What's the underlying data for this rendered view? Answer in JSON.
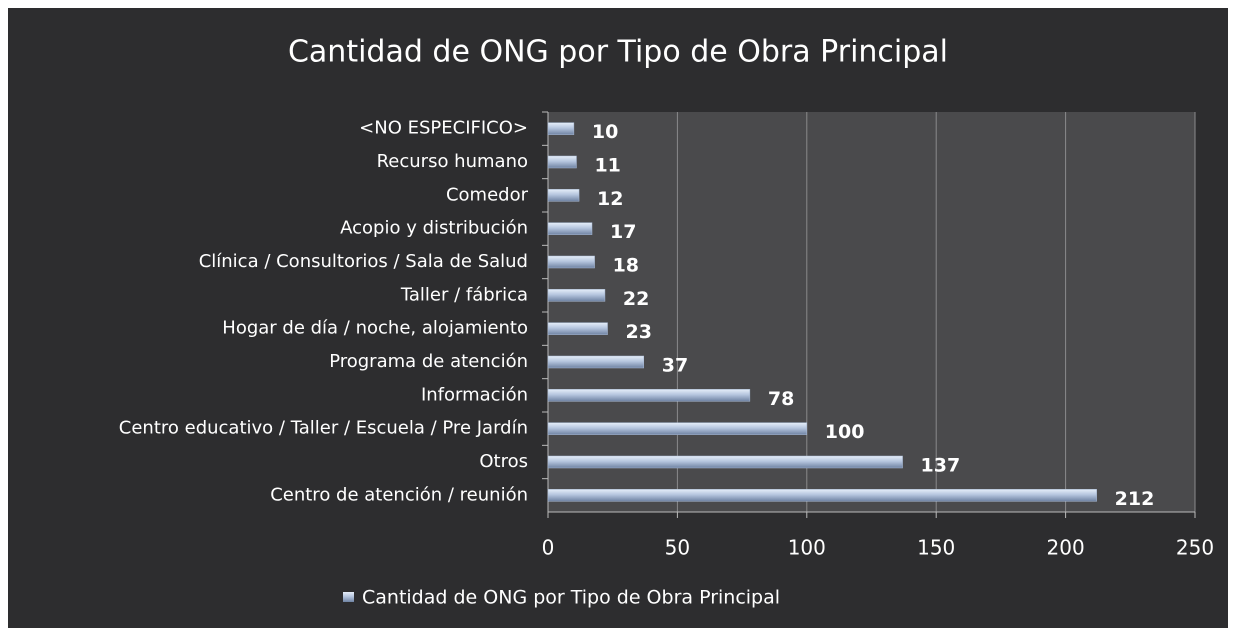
{
  "chart_data": {
    "type": "bar",
    "orientation": "horizontal",
    "title": "Cantidad de ONG por Tipo de Obra Principal",
    "categories": [
      "<NO ESPECIFICO>",
      "Recurso humano",
      "Comedor",
      "Acopio y distribución",
      "Clínica / Consultorios / Sala de Salud",
      "Taller / fábrica",
      "Hogar de día / noche, alojamiento",
      "Programa de atención",
      "Información",
      "Centro educativo / Taller / Escuela / Pre Jardín",
      "Otros",
      "Centro de atención / reunión"
    ],
    "series": [
      {
        "name": "Cantidad de ONG por Tipo de Obra Principal",
        "color": "#a9bbd6",
        "values": [
          10,
          11,
          12,
          17,
          18,
          22,
          23,
          37,
          78,
          100,
          137,
          212
        ]
      }
    ],
    "xlim": [
      0,
      250
    ],
    "xticks": [
      0,
      50,
      100,
      150,
      200,
      250
    ],
    "grid": true,
    "legend": "bottom"
  }
}
